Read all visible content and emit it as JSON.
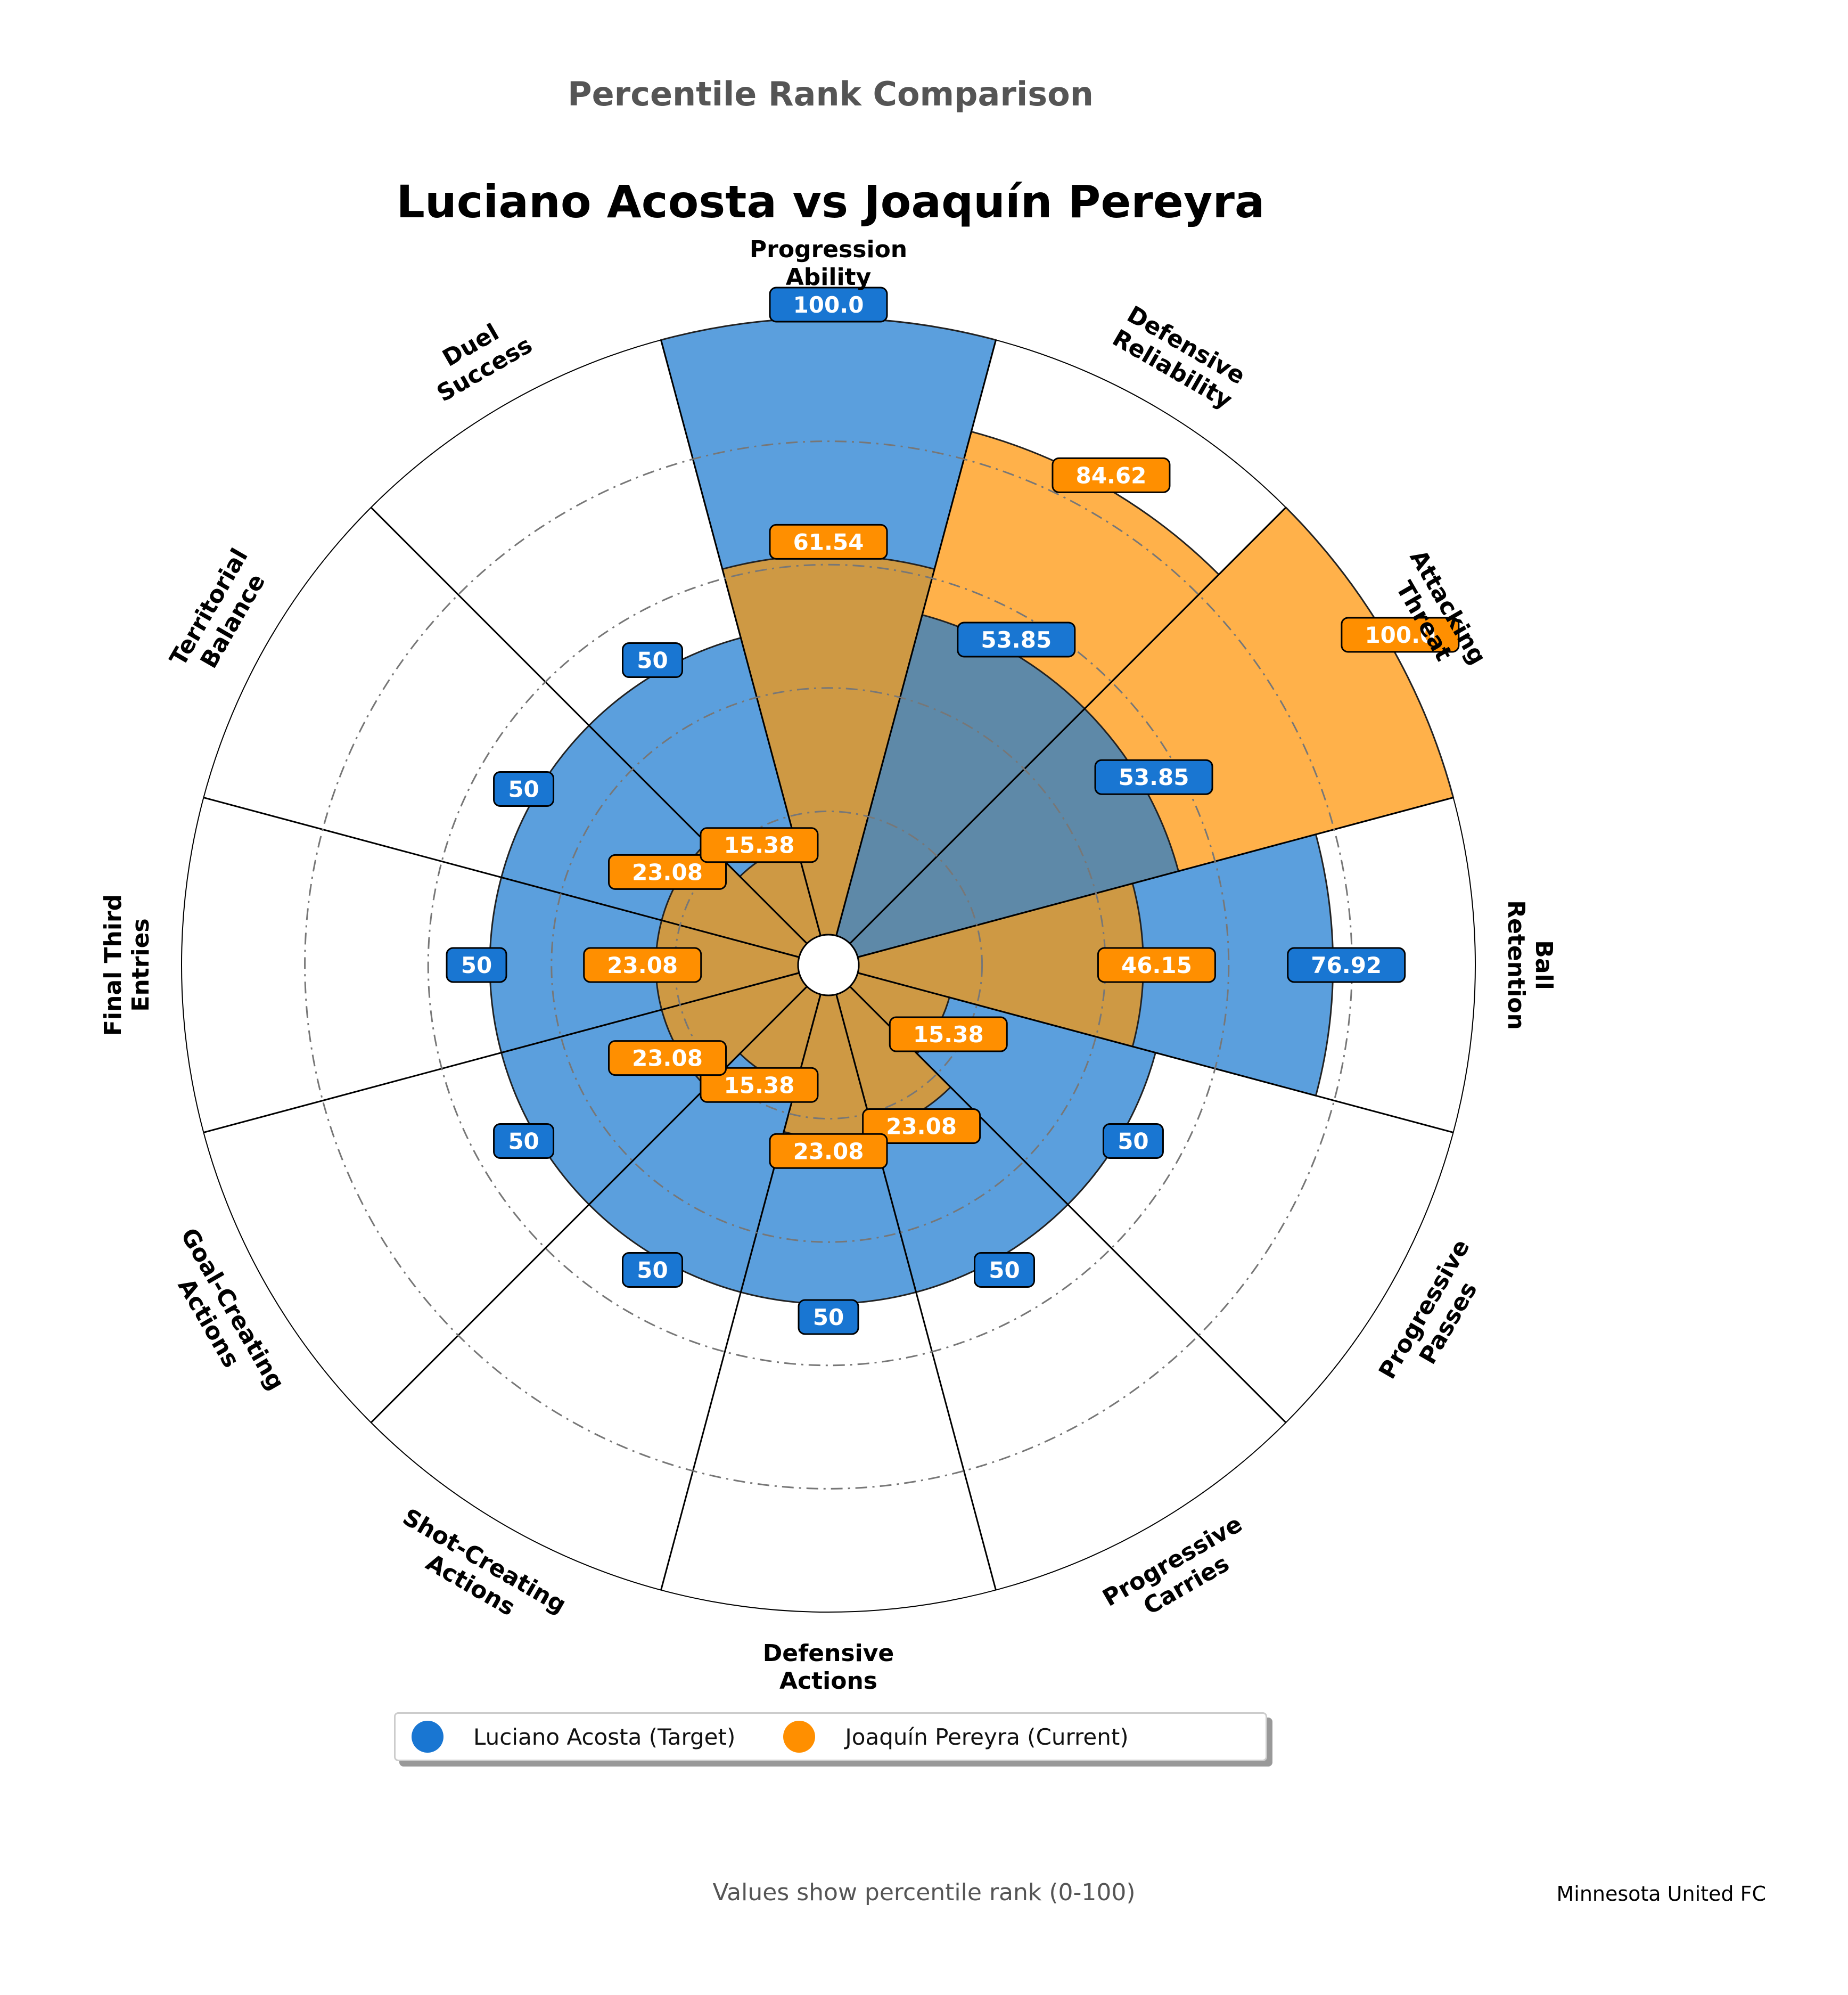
{
  "header": {
    "supertitle": "Percentile Rank Comparison",
    "title": "Luciano Acosta vs Joaquín Pereyra"
  },
  "colors": {
    "target": "#1976D2",
    "target_fill": "#5B9FDD",
    "current": "#FF8F00",
    "current_fill": "#FFB14A",
    "overlap": "#CE9944",
    "overlap_slate": "#5E89A8"
  },
  "chart_data": {
    "type": "polar-bar",
    "rmax": 100,
    "r_gridlines": [
      20,
      40,
      60,
      80
    ],
    "grid": true,
    "categories": [
      "Progression\nAbility",
      "Defensive\nReliability",
      "Attacking\nThreat",
      "Ball\nRetention",
      "Progressive\nPasses",
      "Progressive\nCarries",
      "Defensive\nActions",
      "Shot-Creating\nActions",
      "Goal-Creating\nActions",
      "Final Third\nEntries",
      "Territorial\nBalance",
      "Duel\nSuccess"
    ],
    "series": [
      {
        "name": "Luciano Acosta (Target)",
        "values": [
          100.0,
          53.85,
          53.85,
          76.92,
          50,
          50,
          50,
          50,
          50,
          50,
          50,
          50
        ],
        "labels": [
          "100.0",
          "53.85",
          "53.85",
          "76.92",
          "50",
          "50",
          "50",
          "50",
          "50",
          "50",
          "50",
          "50"
        ]
      },
      {
        "name": "Joaquín Pereyra (Current)",
        "values": [
          61.54,
          84.62,
          100.0,
          46.15,
          15.38,
          23.08,
          23.08,
          15.38,
          23.08,
          23.08,
          23.08,
          15.38
        ],
        "labels": [
          "61.54",
          "84.62",
          "100.0",
          "46.15",
          "15.38",
          "23.08",
          "23.08",
          "15.38",
          "23.08",
          "23.08",
          "23.08",
          "15.38"
        ]
      }
    ],
    "legend_position": "bottom-center"
  },
  "legend": {
    "target": "Luciano Acosta (Target)",
    "current": "Joaquín Pereyra (Current)"
  },
  "footer": {
    "note": "Values show percentile rank (0-100)",
    "club": "Minnesota United FC"
  }
}
